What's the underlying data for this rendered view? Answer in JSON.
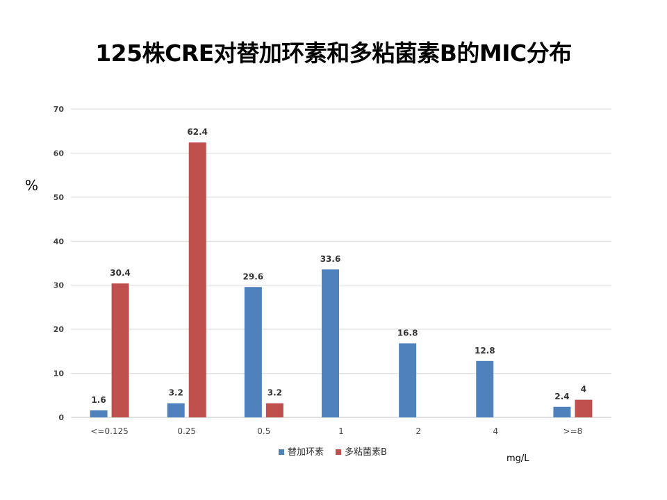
{
  "chart_data": {
    "type": "bar",
    "title": "125株CRE对替加环素和多粘菌素B的MIC分布",
    "ylabel": "%",
    "xunit": "mg/L",
    "ylim": [
      0,
      70
    ],
    "yticks": [
      0,
      10,
      20,
      30,
      40,
      50,
      60,
      70
    ],
    "grid": true,
    "legend_position": "bottom",
    "categories": [
      "<=0.125",
      "0.25",
      "0.5",
      "1",
      "2",
      "4",
      ">=8"
    ],
    "series": [
      {
        "name": "替加环素",
        "color": "#4F81BD",
        "values": [
          1.6,
          3.2,
          29.6,
          33.6,
          16.8,
          12.8,
          2.4
        ]
      },
      {
        "name": "多粘菌素B",
        "color": "#C0504D",
        "values": [
          30.4,
          62.4,
          3.2,
          null,
          null,
          null,
          4
        ]
      }
    ]
  }
}
